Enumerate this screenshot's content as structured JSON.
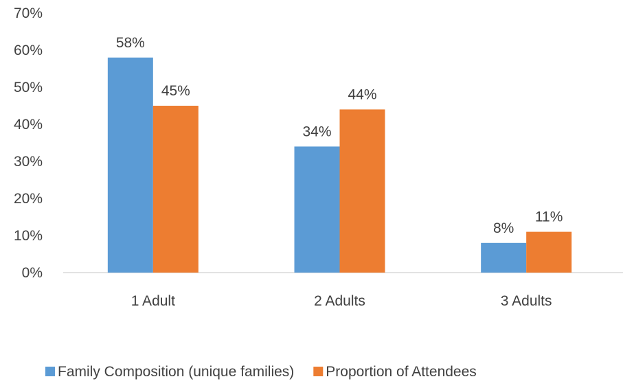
{
  "chart_data": {
    "type": "bar",
    "categories": [
      "1 Adult",
      "2 Adults",
      "3 Adults"
    ],
    "series": [
      {
        "name": "Family Composition (unique families)",
        "values": [
          58,
          34,
          8
        ],
        "labels": [
          "58%",
          "34%",
          "8%"
        ],
        "color": "#5b9bd5"
      },
      {
        "name": "Proportion of Attendees",
        "values": [
          45,
          44,
          11
        ],
        "labels": [
          "45%",
          "44%",
          "11%"
        ],
        "color": "#ed7d31"
      }
    ],
    "ylim": [
      0,
      70
    ],
    "yticks": [
      0,
      10,
      20,
      30,
      40,
      50,
      60,
      70
    ],
    "ytick_labels": [
      "0%",
      "10%",
      "20%",
      "30%",
      "40%",
      "50%",
      "60%",
      "70%"
    ],
    "gridlines": false,
    "legend_position": "bottom",
    "title": "",
    "xlabel": "",
    "ylabel": ""
  }
}
